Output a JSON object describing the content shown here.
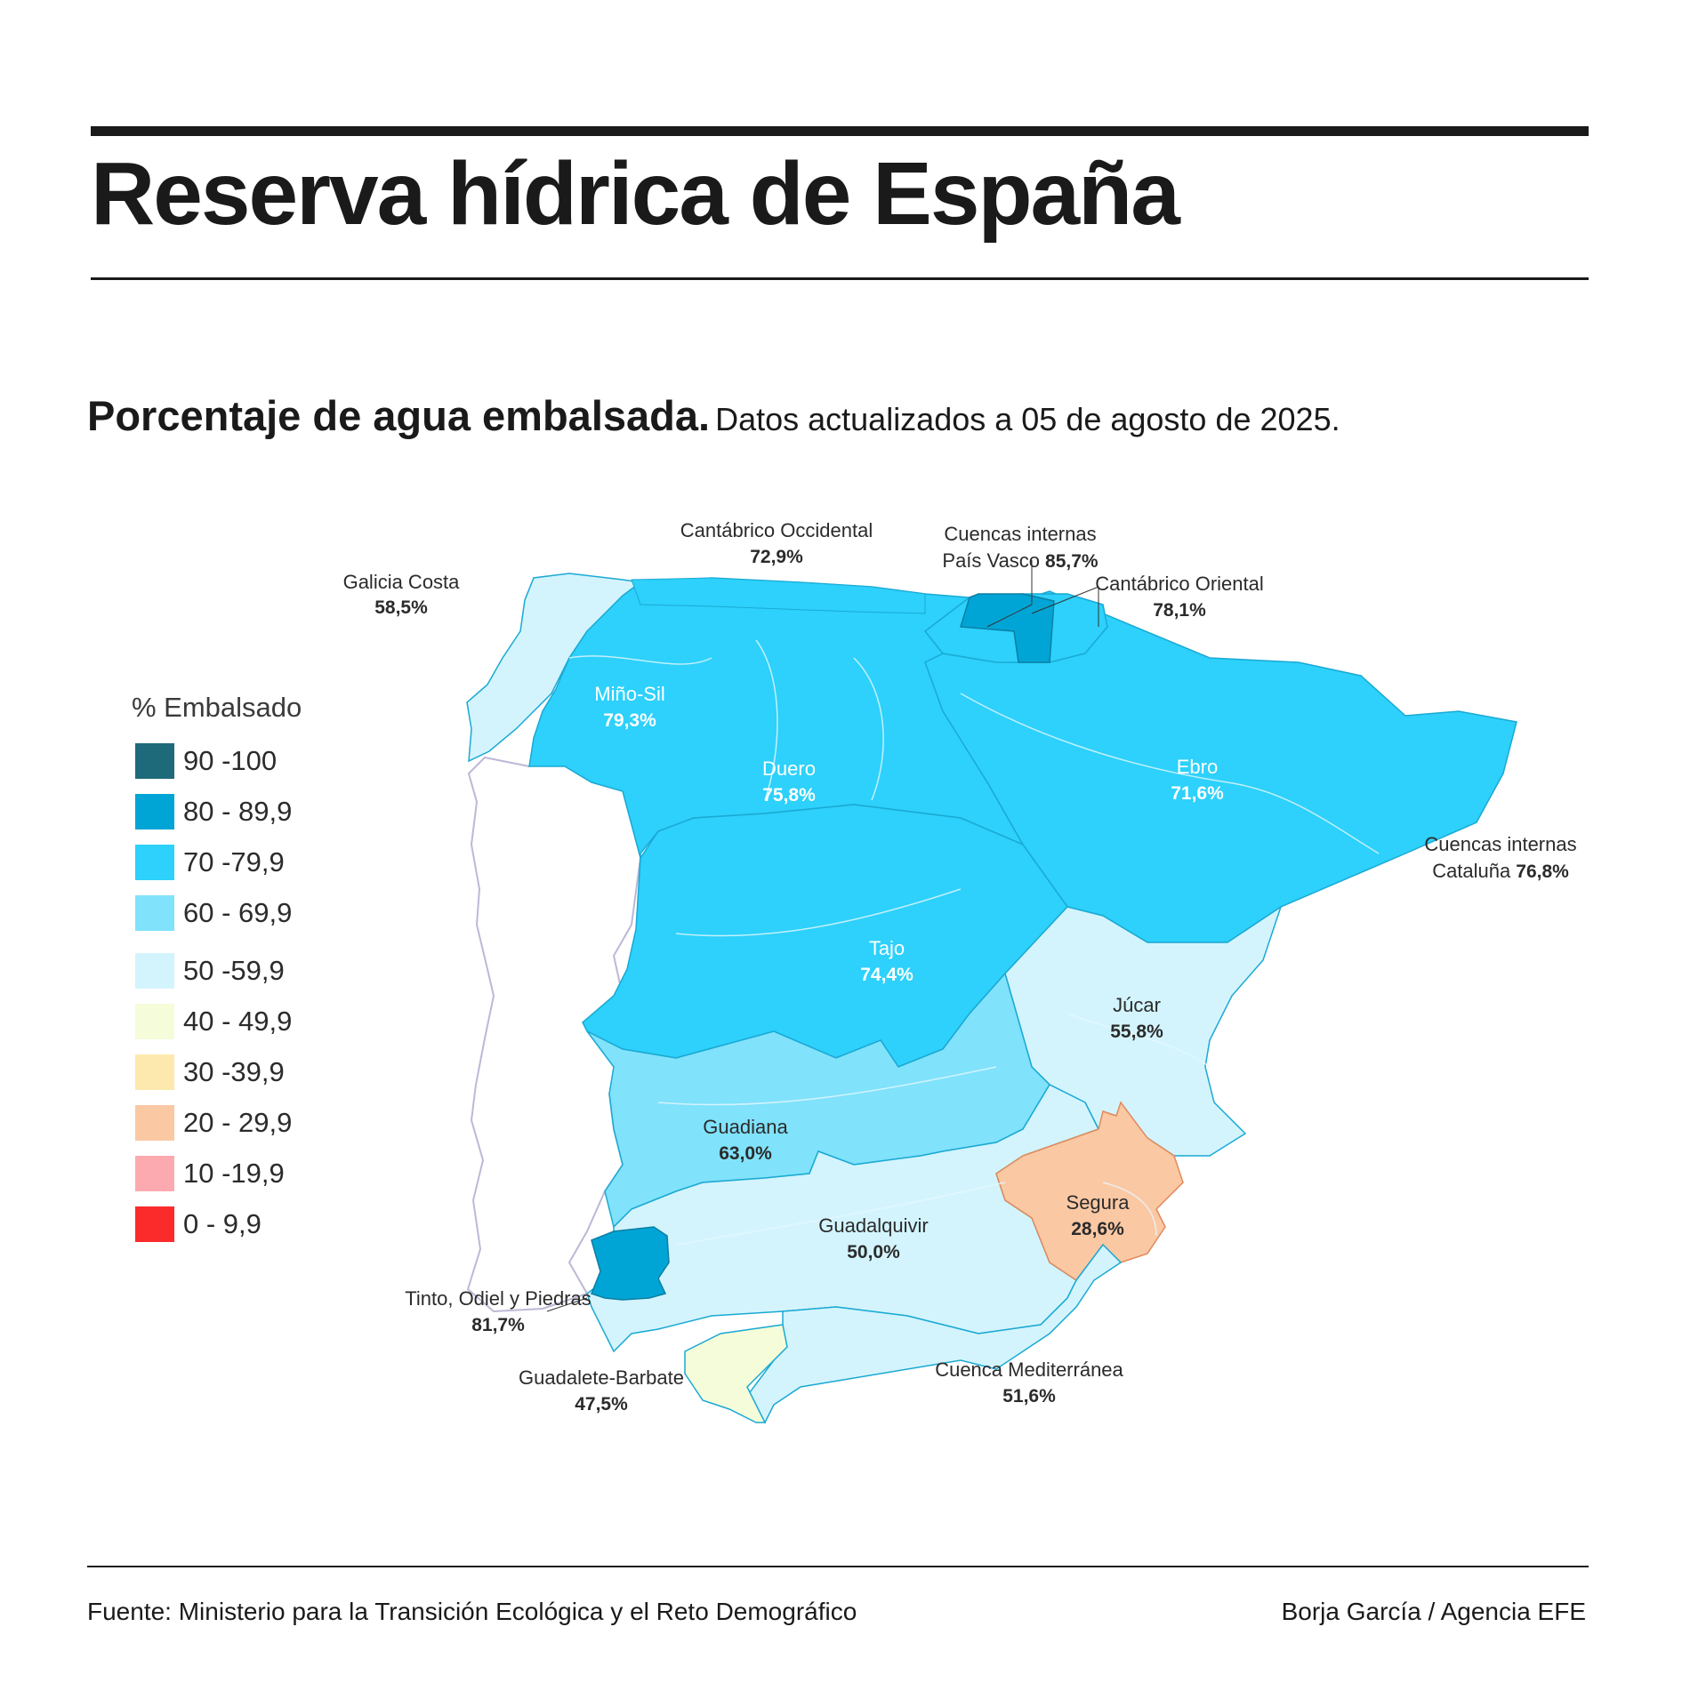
{
  "title": "Reserva hídrica de España",
  "subtitle": {
    "bold": "Porcentaje de agua embalsada.",
    "rest": "Datos actualizados a 05 de agosto de 2025."
  },
  "legend": {
    "title": "% Embalsado",
    "items": [
      {
        "label": "90 -100",
        "color": "#1f6a7a"
      },
      {
        "label": "80 - 89,9",
        "color": "#00a5d6"
      },
      {
        "label": "70 -79,9",
        "color": "#2dd1fb"
      },
      {
        "label": "60 - 69,9",
        "color": "#80e2fb"
      },
      {
        "label": "50 -59,9",
        "color": "#d3f4fd"
      },
      {
        "label": "40 - 49,9",
        "color": "#f4fcd9"
      },
      {
        "label": "30 -39,9",
        "color": "#fde9ad"
      },
      {
        "label": "20 - 29,9",
        "color": "#fbc8a4"
      },
      {
        "label": "10 -19,9",
        "color": "#fcaaaf"
      },
      {
        "label": "0 - 9,9",
        "color": "#fb2b2c"
      }
    ]
  },
  "regions": {
    "galicia_costa": {
      "name": "Galicia Costa",
      "value": "58,5%"
    },
    "cantabrico_occidental": {
      "name": "Cantábrico Occidental",
      "value": "72,9%"
    },
    "pais_vasco": {
      "name_line1": "Cuencas internas",
      "name_line2": "País Vasco",
      "value": "85,7%"
    },
    "cantabrico_oriental": {
      "name": "Cantábrico Oriental",
      "value": "78,1%"
    },
    "mino_sil": {
      "name": "Miño-Sil",
      "value": "79,3%"
    },
    "duero": {
      "name": "Duero",
      "value": "75,8%"
    },
    "ebro": {
      "name": "Ebro",
      "value": "71,6%"
    },
    "cataluna": {
      "name_line1": "Cuencas internas",
      "name_line2": "Cataluña",
      "value": "76,8%"
    },
    "tajo": {
      "name": "Tajo",
      "value": "74,4%"
    },
    "jucar": {
      "name": "Júcar",
      "value": "55,8%"
    },
    "guadiana": {
      "name": "Guadiana",
      "value": "63,0%"
    },
    "segura": {
      "name": "Segura",
      "value": "28,6%"
    },
    "guadalquivir": {
      "name": "Guadalquivir",
      "value": "50,0%"
    },
    "tinto_odiel": {
      "name": "Tinto, Odiel y Piedras",
      "value": "81,7%"
    },
    "guadalete": {
      "name": "Guadalete-Barbate",
      "value": "47,5%"
    },
    "mediterranea": {
      "name": "Cuenca Mediterránea",
      "value": "51,6%"
    }
  },
  "footer": {
    "source": "Fuente: Ministerio para la Transición Ecológica y el Reto Demográfico",
    "credit": "Borja García / Agencia EFE"
  }
}
